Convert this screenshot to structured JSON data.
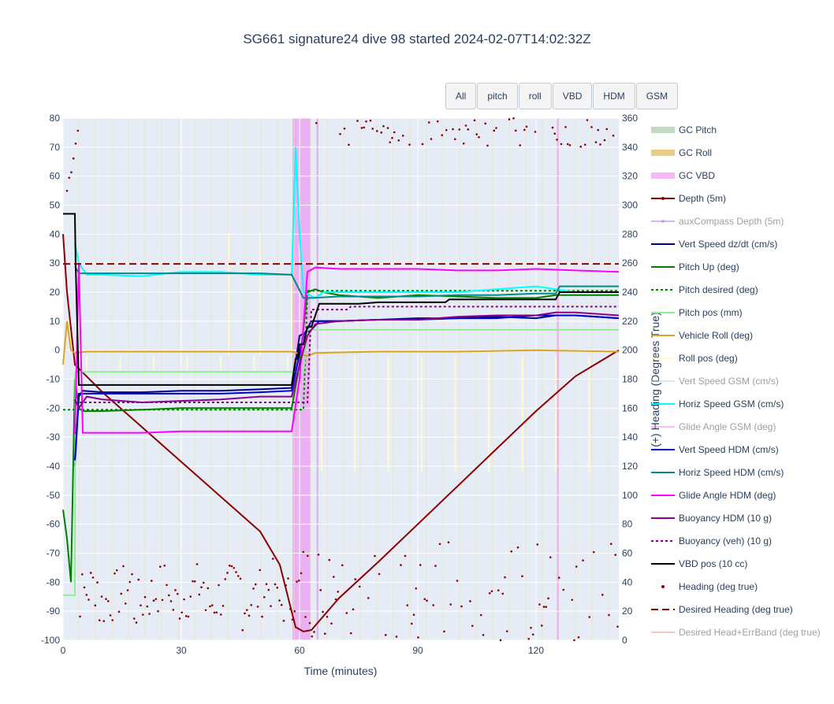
{
  "title": "SG661 signature24 dive 98 started 2024-02-07T14:02:32Z",
  "buttons": [
    "All",
    "pitch",
    "roll",
    "VBD",
    "HDM",
    "GSM"
  ],
  "chart_data": {
    "type": "line",
    "xlabel": "Time (minutes)",
    "ylabel_right": "(+) Heading (Degrees True)",
    "xlim": [
      0,
      141
    ],
    "ylim": [
      -100,
      80
    ],
    "ylim_right": [
      0,
      360
    ],
    "x_ticks": [
      0,
      30,
      60,
      90,
      120
    ],
    "y_ticks": [
      -100,
      -90,
      -80,
      -70,
      -60,
      -50,
      -40,
      -30,
      -20,
      -10,
      0,
      10,
      20,
      30,
      40,
      50,
      60,
      70,
      80
    ],
    "y_ticks_right": [
      0,
      20,
      40,
      60,
      80,
      100,
      120,
      140,
      160,
      180,
      200,
      220,
      240,
      260,
      280,
      300,
      320,
      340,
      360
    ],
    "shaded_regions": [
      {
        "name": "GC VBD",
        "x": [
          58.2,
          62.8
        ],
        "color": "#ee82ee"
      },
      {
        "name": "GC VBD",
        "x": [
          64.3,
          64.8
        ],
        "color": "#ee82ee"
      },
      {
        "name": "GC VBD",
        "x": [
          125.3,
          125.8
        ],
        "color": "#ee82ee"
      }
    ],
    "series": [
      {
        "name": "Depth (5m)",
        "color": "#8b0000",
        "dash": "solid",
        "x": [
          0,
          1,
          3,
          10,
          20,
          30,
          40,
          50,
          55,
          59,
          61,
          63,
          70,
          80,
          90,
          100,
          110,
          120,
          130,
          141
        ],
        "y": [
          40,
          20,
          -5,
          -14.5,
          -26.5,
          -38.5,
          -50.5,
          -62.5,
          -74,
          -95.5,
          -97,
          -96.5,
          -85.5,
          -73,
          -60,
          -47,
          -34,
          -21,
          -9,
          0
        ]
      },
      {
        "name": "Vert Speed dz/dt (cm/s)",
        "color": "#00008b",
        "dash": "solid",
        "x": [
          3,
          4,
          5,
          10,
          20,
          30,
          40,
          50,
          58,
          60,
          63,
          65,
          70,
          80,
          90,
          100,
          110,
          120,
          125,
          130,
          141
        ],
        "y": [
          -40,
          -16,
          -14,
          -14.5,
          -14.5,
          -14,
          -14,
          -13.5,
          -13,
          5,
          7,
          10,
          10,
          10.5,
          11,
          11,
          11.5,
          11,
          12,
          12,
          11
        ]
      },
      {
        "name": "Pitch Up (deg)",
        "color": "#008000",
        "dash": "solid",
        "x": [
          0,
          1,
          2,
          3,
          4,
          5,
          10,
          20,
          30,
          40,
          50,
          58,
          60,
          62,
          64,
          66,
          70,
          80,
          90,
          100,
          110,
          120,
          125,
          130,
          141
        ],
        "y": [
          -55,
          -65,
          -80,
          -10,
          -20,
          -21,
          -21,
          -20.5,
          -20,
          -20,
          -20,
          -20,
          -5,
          20,
          21,
          20,
          19,
          18,
          19,
          18.5,
          18,
          18,
          19,
          19,
          19
        ]
      },
      {
        "name": "Pitch desired (deg)",
        "color": "#008000",
        "dash": "dot",
        "x": [
          0,
          2,
          3,
          58,
          61,
          62,
          141
        ],
        "y": [
          -20.5,
          -20.5,
          -20.5,
          -20.5,
          -20.5,
          20.5,
          20.5
        ]
      },
      {
        "name": "Pitch pos (mm)",
        "color": "#90ee90",
        "dash": "solid",
        "x": [
          0,
          3,
          3.1,
          58,
          61,
          62,
          141
        ],
        "y": [
          -84.5,
          -84.5,
          -7.5,
          -7.5,
          -7.5,
          7,
          7
        ]
      },
      {
        "name": "Vehicle Roll (deg)",
        "color": "#daa520",
        "dash": "solid",
        "x": [
          0,
          1,
          2,
          3,
          6,
          20,
          40,
          58,
          62,
          64,
          80,
          100,
          120,
          141
        ],
        "y": [
          -5,
          10,
          0,
          -1,
          -0.5,
          -0.5,
          -0.5,
          -0.5,
          -2,
          -1,
          -0.5,
          -0.5,
          0,
          -0.5
        ]
      },
      {
        "name": "Horiz Speed GSM (cm/s)",
        "color": "#00ffff",
        "dash": "solid",
        "x": [
          3,
          4,
          6,
          10,
          20,
          30,
          40,
          50,
          56,
          58,
          59,
          60,
          61,
          64,
          66,
          70,
          80,
          90,
          100,
          110,
          120,
          130,
          141
        ],
        "y": [
          37,
          30,
          26,
          26,
          25.5,
          27,
          27,
          26,
          26,
          26,
          70,
          40,
          20,
          18,
          20,
          20,
          20,
          20,
          20,
          21,
          22,
          20,
          20
        ]
      },
      {
        "name": "Vert Speed HDM (cm/s)",
        "color": "#0000cd",
        "dash": "solid",
        "x": [
          3,
          4,
          5,
          10,
          20,
          30,
          40,
          50,
          58,
          61,
          63,
          65,
          70,
          80,
          90,
          100,
          110,
          120,
          125,
          130,
          141
        ],
        "y": [
          -38,
          -15,
          -15,
          -15,
          -15,
          -15,
          -15,
          -14.5,
          -14,
          5,
          10,
          10,
          10,
          10.5,
          10.5,
          11,
          11,
          12,
          12,
          12,
          11
        ]
      },
      {
        "name": "Horiz Speed HDM (cm/s)",
        "color": "#008b8b",
        "dash": "solid",
        "x": [
          3,
          4,
          10,
          20,
          30,
          40,
          50,
          58,
          61,
          63,
          70,
          80,
          90,
          100,
          110,
          120,
          125,
          126,
          130,
          141
        ],
        "y": [
          29,
          26.5,
          26.5,
          26.5,
          26.5,
          26.5,
          26.5,
          26,
          18,
          18,
          18.5,
          18.5,
          18.5,
          19,
          19,
          19.5,
          19.5,
          22,
          22,
          22
        ]
      },
      {
        "name": "Glide Angle HDM (deg)",
        "color": "#ff00ff",
        "dash": "solid",
        "x": [
          3,
          4,
          5,
          10,
          20,
          30,
          40,
          50,
          58,
          60,
          62,
          64,
          70,
          80,
          90,
          100,
          110,
          120,
          130,
          141
        ],
        "y": [
          -29,
          30,
          -28.5,
          -28.5,
          -28.5,
          -28,
          -28,
          -28,
          -28,
          -10,
          27,
          28.5,
          28,
          28,
          28,
          27.5,
          27.5,
          28,
          27.5,
          27
        ]
      },
      {
        "name": "Buoyancy HDM (10 g)",
        "color": "#8b008b",
        "dash": "solid",
        "x": [
          3,
          4,
          6,
          10,
          20,
          30,
          40,
          50,
          58,
          60,
          62,
          64,
          70,
          80,
          90,
          100,
          110,
          120,
          125,
          130,
          141
        ],
        "y": [
          -17,
          -20,
          -16,
          -17,
          -18,
          -17.5,
          -17,
          -16,
          -16,
          -5,
          5,
          9,
          10,
          10.5,
          10.5,
          11.5,
          12,
          12,
          13,
          13,
          12
        ]
      },
      {
        "name": "Buoyancy (veh) (10 g)",
        "color": "#8b008b",
        "dash": "dot",
        "x": [
          3,
          4,
          58,
          62,
          63,
          72,
          73,
          141
        ],
        "y": [
          -18,
          -18,
          -18,
          -18,
          14,
          14,
          15,
          15
        ]
      },
      {
        "name": "VBD pos (10 cc)",
        "color": "#000000",
        "dash": "solid",
        "x": [
          0,
          3,
          3.2,
          4,
          58,
          59,
          59.5,
          60,
          61,
          62,
          63,
          64,
          65,
          75,
          80,
          97,
          98,
          110,
          125,
          126,
          141
        ],
        "y": [
          47,
          47,
          29,
          -12,
          -12,
          -3,
          -3,
          2,
          2,
          8,
          8,
          12,
          16,
          16,
          16.5,
          16.5,
          17.5,
          17.5,
          17.5,
          20,
          20
        ]
      },
      {
        "name": "Desired Heading (deg true)",
        "color": "#8b0000",
        "dash": "dash",
        "axis": "right",
        "x": [
          0,
          141
        ],
        "y": [
          259.5,
          259.5
        ]
      }
    ],
    "legend": [
      {
        "label": "GC Pitch",
        "color": "#8fbc8f",
        "style": "band",
        "visible": true
      },
      {
        "label": "GC Roll",
        "color": "#daa520",
        "style": "band",
        "visible": true
      },
      {
        "label": "GC VBD",
        "color": "#ee82ee",
        "style": "band",
        "visible": true
      },
      {
        "label": "Depth (5m)",
        "color": "#8b0000",
        "style": "line-marker",
        "visible": true
      },
      {
        "label": "auxCompass Depth (5m)",
        "color": "#b070e0",
        "style": "line-marker",
        "visible": false
      },
      {
        "label": "Vert Speed dz/dt (cm/s)",
        "color": "#00008b",
        "style": "line",
        "visible": true
      },
      {
        "label": "Pitch Up (deg)",
        "color": "#008000",
        "style": "line",
        "visible": true
      },
      {
        "label": "Pitch desired (deg)",
        "color": "#008000",
        "style": "dot",
        "visible": true
      },
      {
        "label": "Pitch pos (mm)",
        "color": "#90ee90",
        "style": "line",
        "visible": true
      },
      {
        "label": "Vehicle Roll (deg)",
        "color": "#daa520",
        "style": "line",
        "visible": true
      },
      {
        "label": "Roll pos (deg)",
        "color": "#fffacd",
        "style": "line",
        "visible": true
      },
      {
        "label": "Vert Speed GSM (cm/s)",
        "color": "#add8e6",
        "style": "line",
        "visible": false
      },
      {
        "label": "Horiz Speed GSM (cm/s)",
        "color": "#00ffff",
        "style": "line",
        "visible": true
      },
      {
        "label": "Glide Angle GSM (deg)",
        "color": "#ee82ee",
        "style": "line",
        "visible": false
      },
      {
        "label": "Vert Speed HDM (cm/s)",
        "color": "#0000cd",
        "style": "line",
        "visible": true
      },
      {
        "label": "Horiz Speed HDM (cm/s)",
        "color": "#008b8b",
        "style": "line",
        "visible": true
      },
      {
        "label": "Glide Angle HDM (deg)",
        "color": "#ff00ff",
        "style": "line",
        "visible": true
      },
      {
        "label": "Buoyancy HDM (10 g)",
        "color": "#8b008b",
        "style": "line",
        "visible": true
      },
      {
        "label": "Buoyancy (veh) (10 g)",
        "color": "#8b008b",
        "style": "dot",
        "visible": true
      },
      {
        "label": "VBD pos (10 cc)",
        "color": "#000000",
        "style": "line",
        "visible": true
      },
      {
        "label": "Heading (deg true)",
        "color": "#8b0000",
        "style": "marker",
        "visible": true
      },
      {
        "label": "Desired Heading (deg true)",
        "color": "#8b0000",
        "style": "dash",
        "visible": true
      },
      {
        "label": "Desired Head+ErrBand (deg true)",
        "color": "#e9967a",
        "style": "line",
        "visible": false
      }
    ]
  }
}
